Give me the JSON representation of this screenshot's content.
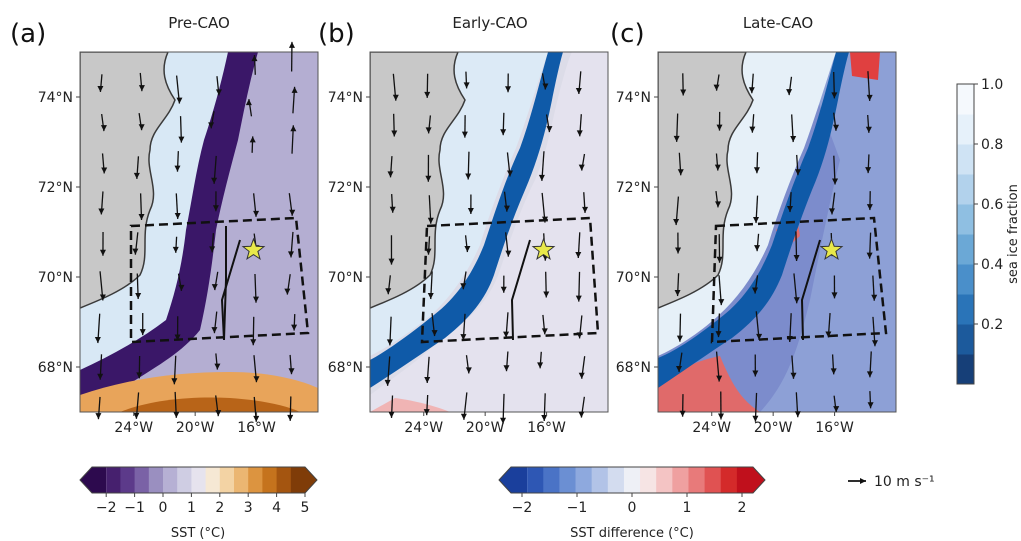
{
  "chart_data": [
    {
      "type": "heatmap",
      "panel_label": "(a)",
      "title": "Pre-CAO",
      "field": "SST",
      "colorbar": "sst",
      "y_ticks": [
        {
          "value": 74,
          "label": "74°N"
        },
        {
          "value": 72,
          "label": "72°N"
        },
        {
          "value": 70,
          "label": "70°N"
        },
        {
          "value": 68,
          "label": "68°N"
        }
      ],
      "x_ticks": [
        {
          "value": -24,
          "label": "24°W"
        },
        {
          "value": -20,
          "label": "20°W"
        },
        {
          "value": -16,
          "label": "16°W"
        }
      ],
      "xlim": [
        -27.5,
        -12
      ],
      "ylim": [
        67,
        75
      ],
      "star": {
        "lon": -16.2,
        "lat": 70.6
      }
    },
    {
      "type": "heatmap",
      "panel_label": "(b)",
      "title": "Early-CAO",
      "field": "SST difference",
      "colorbar": "sst_difference",
      "y_ticks": [
        {
          "value": 74,
          "label": "74°N"
        },
        {
          "value": 72,
          "label": "72°N"
        },
        {
          "value": 70,
          "label": "70°N"
        },
        {
          "value": 68,
          "label": "68°N"
        }
      ],
      "x_ticks": [
        {
          "value": -24,
          "label": "24°W"
        },
        {
          "value": -20,
          "label": "20°W"
        },
        {
          "value": -16,
          "label": "16°W"
        }
      ],
      "xlim": [
        -27.5,
        -12
      ],
      "ylim": [
        67,
        75
      ],
      "star": {
        "lon": -16.2,
        "lat": 70.6
      }
    },
    {
      "type": "heatmap",
      "panel_label": "(c)",
      "title": "Late-CAO",
      "field": "SST difference",
      "colorbar": "sst_difference",
      "y_ticks": [
        {
          "value": 74,
          "label": "74°N"
        },
        {
          "value": 72,
          "label": "72°N"
        },
        {
          "value": 70,
          "label": "70°N"
        },
        {
          "value": 68,
          "label": "68°N"
        }
      ],
      "x_ticks": [
        {
          "value": -24,
          "label": "24°W"
        },
        {
          "value": -20,
          "label": "20°W"
        },
        {
          "value": -16,
          "label": "16°W"
        }
      ],
      "xlim": [
        -27.5,
        -12
      ],
      "ylim": [
        67,
        75
      ],
      "star": {
        "lon": -16.2,
        "lat": 70.6
      }
    }
  ],
  "colorbars": {
    "sea_ice": {
      "label": "sea ice fraction",
      "ticks": [
        "0.2",
        "0.4",
        "0.6",
        "0.8",
        "1.0"
      ],
      "colors": [
        "#163f78",
        "#1c5a9c",
        "#2a74b8",
        "#4a8fca",
        "#6ba8d6",
        "#8fbfe2",
        "#b2d2ec",
        "#cfe3f4",
        "#e6f1fa",
        "#f5f9fd"
      ]
    },
    "sst": {
      "label": "SST (°C)",
      "ticks": [
        "−2",
        "−1",
        "0",
        "1",
        "2",
        "3",
        "4",
        "5"
      ],
      "colors": [
        "#2d0a4e",
        "#46206e",
        "#5c3a8a",
        "#7a62a6",
        "#9a8fc0",
        "#b6b0d4",
        "#cfcde3",
        "#e6e3ee",
        "#f6e8d4",
        "#f3d3a4",
        "#ebb672",
        "#dc9440",
        "#c5731d",
        "#a45510",
        "#7f3c08"
      ]
    },
    "sst_difference": {
      "label": "SST difference (°C)",
      "ticks": [
        "−2",
        "−1",
        "0",
        "1",
        "2"
      ],
      "colors": [
        "#1a3f9c",
        "#2e57b4",
        "#4a73c6",
        "#6b8fd3",
        "#8ea9de",
        "#b2c3e7",
        "#d3dcef",
        "#eef0f6",
        "#f6e4e4",
        "#f4c4c4",
        "#efa0a0",
        "#e87a7a",
        "#e05252",
        "#d42a2a",
        "#c0101c"
      ]
    }
  },
  "wind_key": {
    "label": "10 m s⁻¹"
  },
  "colors": {
    "land": "#c8c8c8",
    "coast": "#3a3a3a",
    "frame": "#555555",
    "star_fill": "#e8e84a",
    "star_edge": "#333333"
  }
}
